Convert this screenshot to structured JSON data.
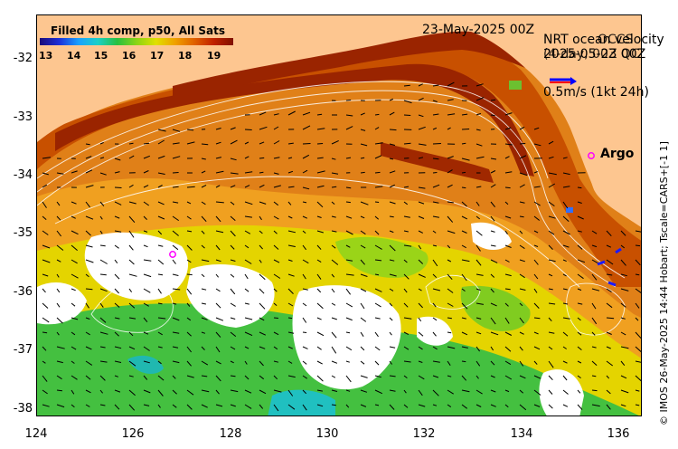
{
  "header": {
    "date": "23-May-2025 00Z"
  },
  "legend": {
    "line1": "NRT ocean velocity",
    "line1_overlap": "OCCS",
    "line2": "2025-05-23 00Z",
    "line2_overlap": "(4-day, 00Z QC",
    "scale": "0.5m/s (1kt 24h)",
    "arrow_colors": [
      "#0000ff",
      "#ff0000"
    ]
  },
  "colorbar": {
    "title": "Filled 4h comp, p50, All Sats",
    "ticks": [
      "13",
      "14",
      "15",
      "16",
      "17",
      "18",
      "19"
    ]
  },
  "annotations": {
    "argo": "Argo"
  },
  "axes": {
    "x_ticks": [
      "124",
      "126",
      "128",
      "130",
      "132",
      "134",
      "136"
    ],
    "y_ticks": [
      "-32",
      "-33",
      "-34",
      "-35",
      "-36",
      "-37",
      "-38"
    ]
  },
  "credit": "© IMOS 26-May-2025 14:44 Hobart; Tscale=CARS+[-1 1]",
  "colors": {
    "land": "#fdc690",
    "warm": "#c84a00",
    "hot": "#9a2000",
    "mid": "#e89018",
    "cool": "#e0d000",
    "green": "#30c040",
    "cloud": "#ffffff",
    "argo_marker": "#ff00ff"
  }
}
